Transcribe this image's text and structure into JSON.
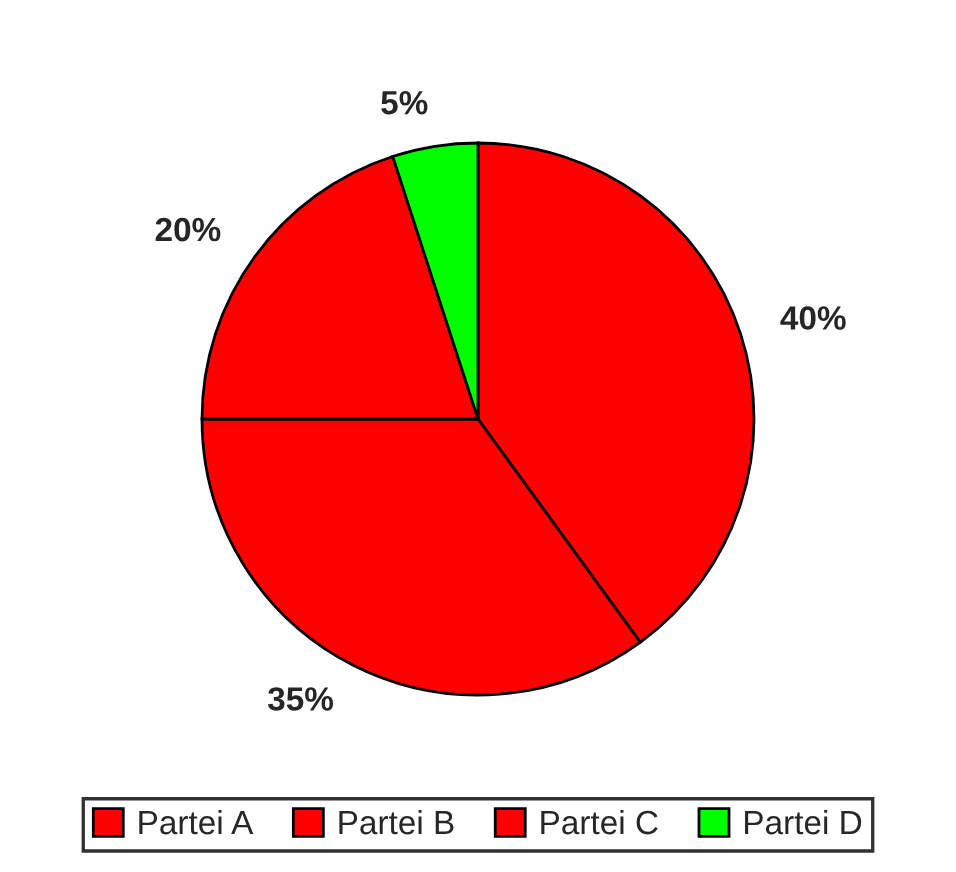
{
  "chart_data": {
    "type": "pie",
    "categories": [
      "Partei A",
      "Partei B",
      "Partei C",
      "Partei D"
    ],
    "values": [
      40,
      35,
      20,
      5
    ],
    "value_labels": [
      "40%",
      "35%",
      "20%",
      "5%"
    ],
    "colors": [
      "#ff0000",
      "#ff0000",
      "#ff0000",
      "#00ff00"
    ],
    "legend": "bottom"
  }
}
